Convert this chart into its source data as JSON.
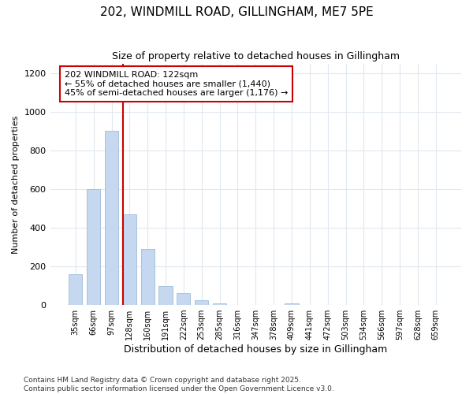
{
  "title_line1": "202, WINDMILL ROAD, GILLINGHAM, ME7 5PE",
  "title_line2": "Size of property relative to detached houses in Gillingham",
  "xlabel": "Distribution of detached houses by size in Gillingham",
  "ylabel": "Number of detached properties",
  "annotation_title": "202 WINDMILL ROAD: 122sqm",
  "annotation_line1": "← 55% of detached houses are smaller (1,440)",
  "annotation_line2": "45% of semi-detached houses are larger (1,176) →",
  "categories": [
    "35sqm",
    "66sqm",
    "97sqm",
    "128sqm",
    "160sqm",
    "191sqm",
    "222sqm",
    "253sqm",
    "285sqm",
    "316sqm",
    "347sqm",
    "378sqm",
    "409sqm",
    "441sqm",
    "472sqm",
    "503sqm",
    "534sqm",
    "566sqm",
    "597sqm",
    "628sqm",
    "659sqm"
  ],
  "values": [
    160,
    600,
    900,
    470,
    290,
    100,
    60,
    25,
    10,
    0,
    0,
    0,
    10,
    0,
    0,
    0,
    0,
    0,
    0,
    0,
    0
  ],
  "bar_color": "#c5d8f0",
  "bar_edge_color": "#a0bcd8",
  "highlight_line_color": "#cc0000",
  "annotation_box_facecolor": "#ffffff",
  "annotation_box_edgecolor": "#cc0000",
  "background_color": "#ffffff",
  "grid_color": "#e0e8f0",
  "ylim": [
    0,
    1250
  ],
  "yticks": [
    0,
    200,
    400,
    600,
    800,
    1000,
    1200
  ],
  "highlight_index": 3,
  "footnote1": "Contains HM Land Registry data © Crown copyright and database right 2025.",
  "footnote2": "Contains public sector information licensed under the Open Government Licence v3.0."
}
